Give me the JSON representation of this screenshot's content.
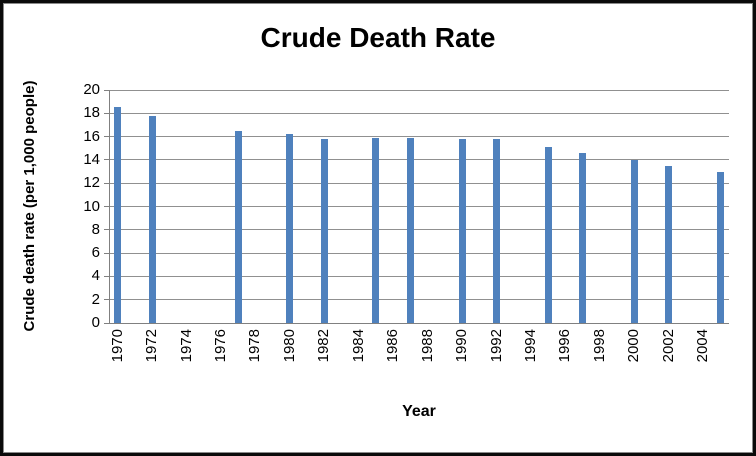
{
  "chart_data": {
    "type": "bar",
    "title": "Crude Death Rate",
    "xlabel": "Year",
    "ylabel": "Crude death rate (per 1,000 people)",
    "x": [
      1970,
      1972,
      1977,
      1980,
      1982,
      1985,
      1987,
      1990,
      1992,
      1995,
      1997,
      2000,
      2002,
      2005
    ],
    "values": [
      18.5,
      17.8,
      16.5,
      16.2,
      15.8,
      15.9,
      15.9,
      15.8,
      15.8,
      15.1,
      14.6,
      14.0,
      13.5,
      13.0
    ],
    "x_axis": {
      "start": 1970,
      "end": 2005,
      "tick_labels": [
        "1970",
        "1972",
        "1974",
        "1976",
        "1978",
        "1980",
        "1982",
        "1984",
        "1986",
        "1988",
        "1990",
        "1992",
        "1994",
        "1996",
        "1998",
        "2000",
        "2002",
        "2004"
      ]
    },
    "ylim": [
      0,
      20
    ],
    "ytick_step": 2,
    "ytick_labels": [
      "0",
      "2",
      "4",
      "6",
      "8",
      "10",
      "12",
      "14",
      "16",
      "18",
      "20"
    ],
    "grid": true,
    "legend": false,
    "colors": {
      "bar": "#4F81BD",
      "gridline": "#909090",
      "axis": "#808080",
      "text": "#000000",
      "frame_outer": "#0a0a0a",
      "frame_inner": "#8a8a8a",
      "background": "#ffffff"
    }
  }
}
